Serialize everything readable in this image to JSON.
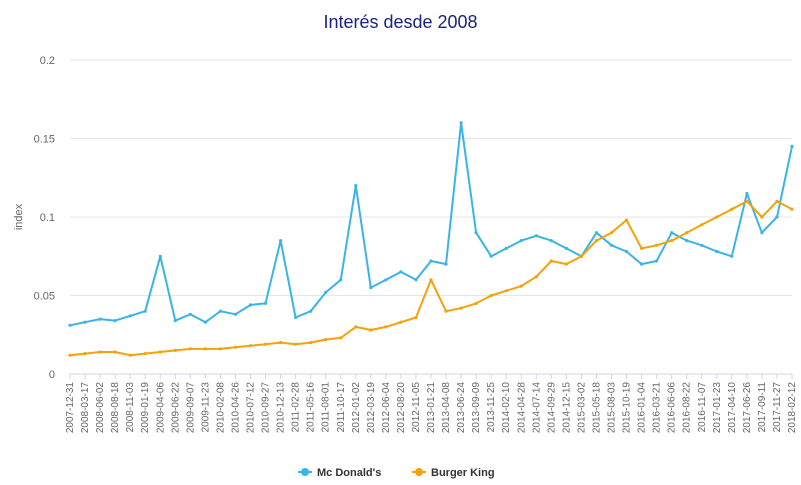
{
  "chart_data": {
    "type": "line",
    "title": "Interés desde 2008",
    "xlabel": "",
    "ylabel": "index",
    "ylim": [
      0,
      0.2
    ],
    "yticks": [
      0,
      0.05,
      0.1,
      0.15,
      0.2
    ],
    "ytick_labels": [
      "0",
      "0.05",
      "0.1",
      "0.15",
      "0.2"
    ],
    "grid": "horizontal",
    "legend": "bottom-center",
    "x_tick_labels": [
      "2007-12-31",
      "2008-03-17",
      "2008-06-02",
      "2008-08-18",
      "2008-11-03",
      "2009-01-19",
      "2009-04-06",
      "2009-06-22",
      "2009-09-07",
      "2009-11-23",
      "2010-02-08",
      "2010-04-26",
      "2010-07-12",
      "2010-09-27",
      "2010-12-13",
      "2011-02-28",
      "2011-05-16",
      "2011-08-01",
      "2011-10-17",
      "2012-01-02",
      "2012-03-19",
      "2012-06-04",
      "2012-08-20",
      "2012-11-05",
      "2013-01-21",
      "2013-04-08",
      "2013-06-24",
      "2013-09-09",
      "2013-11-25",
      "2014-02-10",
      "2014-04-28",
      "2014-07-14",
      "2014-09-29",
      "2014-12-15",
      "2015-03-02",
      "2015-05-18",
      "2015-08-03",
      "2015-10-19",
      "2016-01-04",
      "2016-03-21",
      "2016-06-06",
      "2016-08-22",
      "2016-11-07",
      "2017-01-23",
      "2017-04-10",
      "2017-06-26",
      "2017-09-11",
      "2017-11-27",
      "2018-02-12"
    ],
    "x": [
      "2007-12-31",
      "2008-03-17",
      "2008-06-02",
      "2008-08-18",
      "2008-11-03",
      "2009-01-19",
      "2009-04-06",
      "2009-06-22",
      "2009-09-07",
      "2009-11-23",
      "2010-02-08",
      "2010-04-26",
      "2010-07-12",
      "2010-09-27",
      "2010-12-13",
      "2011-02-28",
      "2011-05-16",
      "2011-08-01",
      "2011-10-17",
      "2012-01-02",
      "2012-03-19",
      "2012-06-04",
      "2012-08-20",
      "2012-11-05",
      "2013-01-21",
      "2013-04-08",
      "2013-06-24",
      "2013-09-09",
      "2013-11-25",
      "2014-02-10",
      "2014-04-28",
      "2014-07-14",
      "2014-09-29",
      "2014-12-15",
      "2015-03-02",
      "2015-05-18",
      "2015-08-03",
      "2015-10-19",
      "2016-01-04",
      "2016-03-21",
      "2016-06-06",
      "2016-08-22",
      "2016-11-07",
      "2017-01-23",
      "2017-04-10",
      "2017-06-26",
      "2017-09-11",
      "2017-11-27",
      "2018-02-12"
    ],
    "series": [
      {
        "name": "Mc Donald's",
        "color": "#3ab4e6",
        "values": [
          0.031,
          0.033,
          0.035,
          0.034,
          0.037,
          0.04,
          0.075,
          0.034,
          0.038,
          0.033,
          0.04,
          0.038,
          0.044,
          0.045,
          0.085,
          0.036,
          0.04,
          0.052,
          0.06,
          0.12,
          0.055,
          0.06,
          0.065,
          0.06,
          0.072,
          0.07,
          0.16,
          0.09,
          0.075,
          0.08,
          0.085,
          0.088,
          0.085,
          0.08,
          0.075,
          0.09,
          0.082,
          0.078,
          0.07,
          0.072,
          0.09,
          0.085,
          0.082,
          0.078,
          0.075,
          0.115,
          0.09,
          0.1,
          0.145
        ]
      },
      {
        "name": "Burger King",
        "color": "#f5a10a",
        "values": [
          0.012,
          0.013,
          0.014,
          0.014,
          0.012,
          0.013,
          0.014,
          0.015,
          0.016,
          0.016,
          0.016,
          0.017,
          0.018,
          0.019,
          0.02,
          0.019,
          0.02,
          0.022,
          0.023,
          0.03,
          0.028,
          0.03,
          0.033,
          0.036,
          0.06,
          0.04,
          0.042,
          0.045,
          0.05,
          0.053,
          0.056,
          0.062,
          0.072,
          0.07,
          0.075,
          0.085,
          0.09,
          0.098,
          0.08,
          0.082,
          0.085,
          0.09,
          0.095,
          0.1,
          0.105,
          0.11,
          0.1,
          0.11,
          0.105
        ]
      }
    ]
  }
}
